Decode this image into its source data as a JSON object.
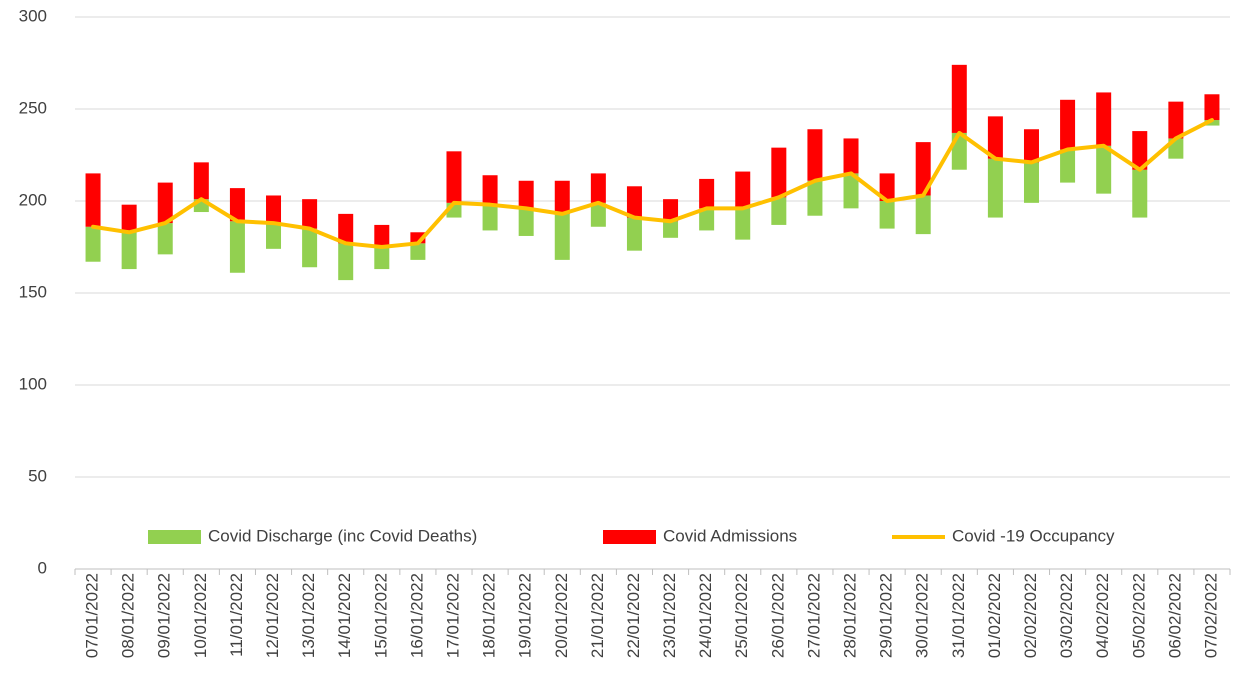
{
  "chart_data": {
    "type": "floating-bar-line",
    "categories": [
      "07/01/2022",
      "08/01/2022",
      "09/01/2022",
      "10/01/2022",
      "11/01/2022",
      "12/01/2022",
      "13/01/2022",
      "14/01/2022",
      "15/01/2022",
      "16/01/2022",
      "17/01/2022",
      "18/01/2022",
      "19/01/2022",
      "20/01/2022",
      "21/01/2022",
      "22/01/2022",
      "23/01/2022",
      "24/01/2022",
      "25/01/2022",
      "26/01/2022",
      "27/01/2022",
      "28/01/2022",
      "29/01/2022",
      "30/01/2022",
      "31/01/2022",
      "01/02/2022",
      "02/02/2022",
      "03/02/2022",
      "04/02/2022",
      "05/02/2022",
      "06/02/2022",
      "07/02/2022"
    ],
    "series": [
      {
        "name": "Covid Discharge (inc Covid Deaths)",
        "color": "#92D050",
        "kind": "bar-below",
        "values": [
          19,
          20,
          17,
          7,
          28,
          14,
          21,
          20,
          12,
          9,
          8,
          14,
          15,
          25,
          13,
          18,
          9,
          12,
          17,
          15,
          19,
          19,
          15,
          21,
          20,
          32,
          22,
          18,
          26,
          26,
          11,
          3
        ]
      },
      {
        "name": "Covid Admissions",
        "color": "#FF0000",
        "kind": "bar-above",
        "values": [
          29,
          15,
          22,
          20,
          18,
          15,
          16,
          16,
          12,
          6,
          28,
          16,
          15,
          18,
          16,
          17,
          12,
          16,
          20,
          27,
          28,
          19,
          15,
          29,
          37,
          23,
          18,
          27,
          29,
          21,
          20,
          14
        ]
      },
      {
        "name": "Covid -19 Occupancy",
        "color": "#FFC000",
        "kind": "line",
        "values": [
          186,
          183,
          188,
          201,
          189,
          188,
          185,
          177,
          175,
          177,
          199,
          198,
          196,
          193,
          199,
          191,
          189,
          196,
          196,
          202,
          211,
          215,
          200,
          203,
          237,
          223,
          221,
          228,
          230,
          217,
          234,
          244
        ]
      }
    ],
    "ylim": [
      0,
      300
    ],
    "yticks": [
      0,
      50,
      100,
      150,
      200,
      250,
      300
    ],
    "grid": true,
    "legend": "bottom"
  }
}
